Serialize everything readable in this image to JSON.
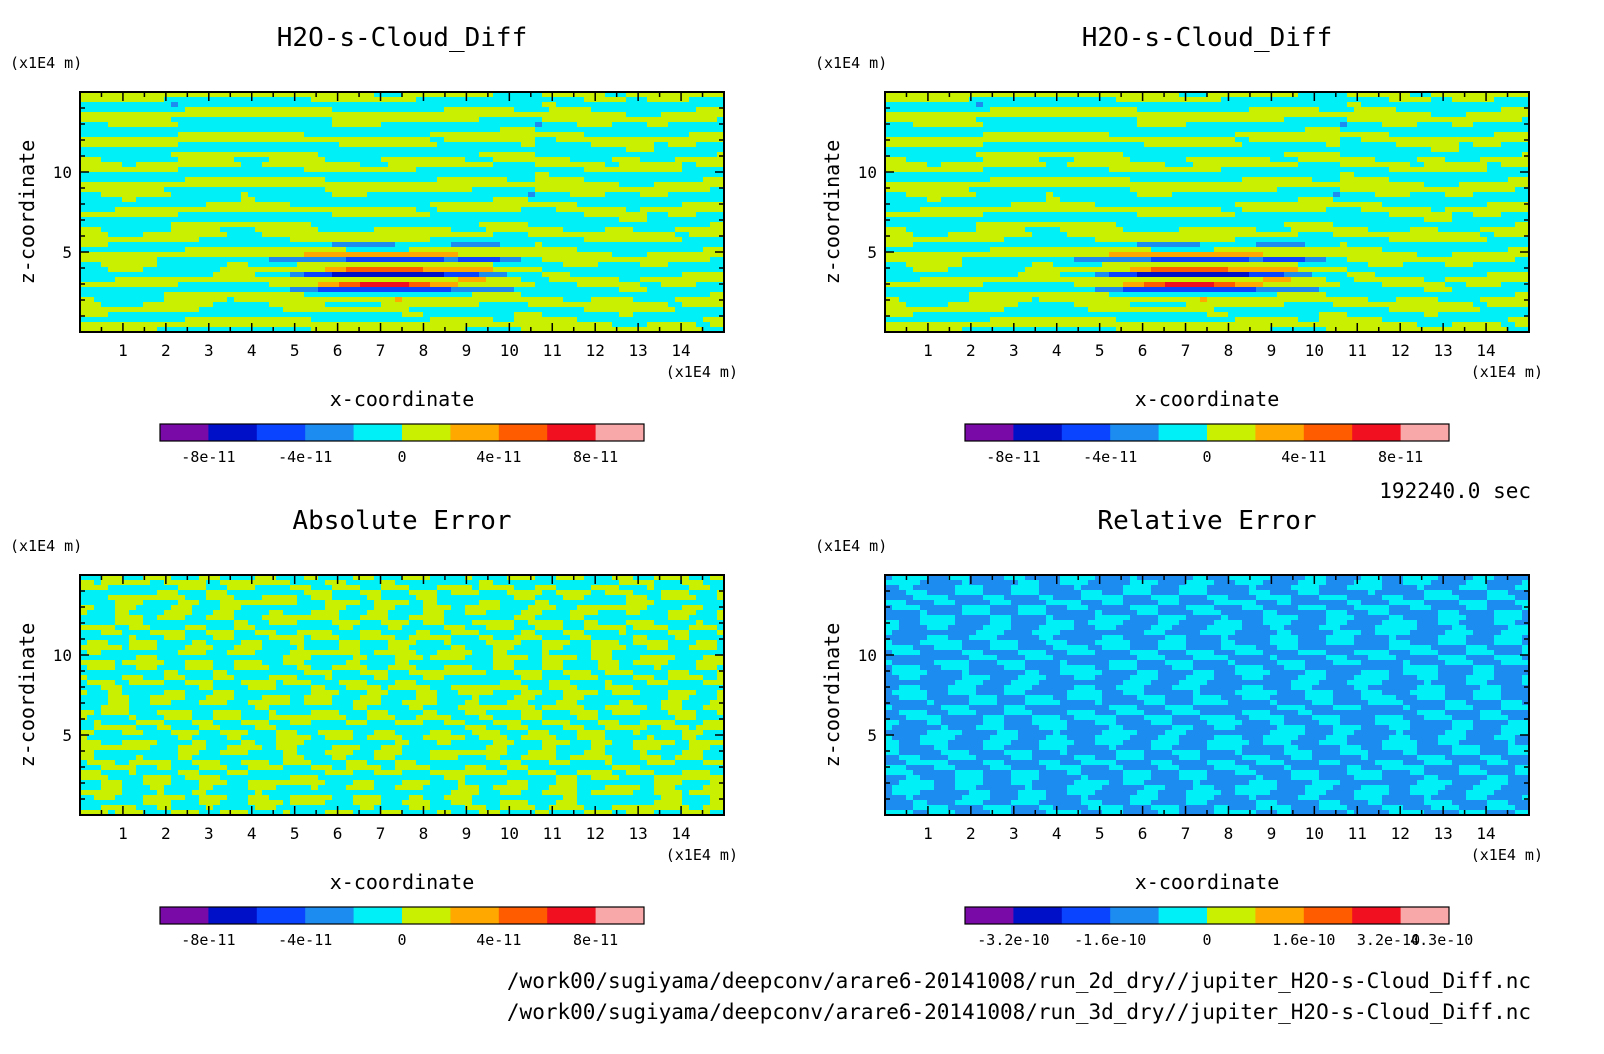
{
  "chart_data": [
    {
      "type": "heatmap",
      "title": "H2O-s-Cloud_Diff",
      "xlabel": "x-coordinate",
      "ylabel": "z-coordinate",
      "xunit": "(x1E4 m)",
      "yunit": "(x1E4 m)",
      "xlim": [
        0,
        15
      ],
      "ylim": [
        0,
        15
      ],
      "xticks": [
        "1",
        "2",
        "3",
        "4",
        "5",
        "6",
        "7",
        "8",
        "9",
        "10",
        "11",
        "12",
        "13",
        "14"
      ],
      "yticks": [
        "5",
        "10"
      ],
      "colorbar": {
        "colors": [
          "#7a0aa8",
          "#0010c8",
          "#0a44ff",
          "#1c8cf0",
          "#00f0f8",
          "#c8f000",
          "#ffa800",
          "#ff5c00",
          "#f01020",
          "#f8a8a8"
        ],
        "tick_labels": [
          "-8e-11",
          "-4e-11",
          "0",
          "4e-11",
          "8e-11"
        ]
      }
    },
    {
      "type": "heatmap",
      "title": "H2O-s-Cloud_Diff",
      "xlabel": "x-coordinate",
      "ylabel": "z-coordinate",
      "xunit": "(x1E4 m)",
      "yunit": "(x1E4 m)",
      "xlim": [
        0,
        15
      ],
      "ylim": [
        0,
        15
      ],
      "xticks": [
        "1",
        "2",
        "3",
        "4",
        "5",
        "6",
        "7",
        "8",
        "9",
        "10",
        "11",
        "12",
        "13",
        "14"
      ],
      "yticks": [
        "5",
        "10"
      ],
      "colorbar": {
        "colors": [
          "#7a0aa8",
          "#0010c8",
          "#0a44ff",
          "#1c8cf0",
          "#00f0f8",
          "#c8f000",
          "#ffa800",
          "#ff5c00",
          "#f01020",
          "#f8a8a8"
        ],
        "tick_labels": [
          "-8e-11",
          "-4e-11",
          "0",
          "4e-11",
          "8e-11"
        ]
      }
    },
    {
      "type": "heatmap",
      "title": "Absolute Error",
      "xlabel": "x-coordinate",
      "ylabel": "z-coordinate",
      "xunit": "(x1E4 m)",
      "yunit": "(x1E4 m)",
      "xlim": [
        0,
        15
      ],
      "ylim": [
        0,
        15
      ],
      "xticks": [
        "1",
        "2",
        "3",
        "4",
        "5",
        "6",
        "7",
        "8",
        "9",
        "10",
        "11",
        "12",
        "13",
        "14"
      ],
      "yticks": [
        "5",
        "10"
      ],
      "colorbar": {
        "colors": [
          "#7a0aa8",
          "#0010c8",
          "#0a44ff",
          "#1c8cf0",
          "#00f0f8",
          "#c8f000",
          "#ffa800",
          "#ff5c00",
          "#f01020",
          "#f8a8a8"
        ],
        "tick_labels": [
          "-8e-11",
          "-4e-11",
          "0",
          "4e-11",
          "8e-11"
        ]
      }
    },
    {
      "type": "heatmap",
      "title": "Relative Error",
      "xlabel": "x-coordinate",
      "ylabel": "z-coordinate",
      "xunit": "(x1E4 m)",
      "yunit": "(x1E4 m)",
      "xlim": [
        0,
        15
      ],
      "ylim": [
        0,
        15
      ],
      "xticks": [
        "1",
        "2",
        "3",
        "4",
        "5",
        "6",
        "7",
        "8",
        "9",
        "10",
        "11",
        "12",
        "13",
        "14"
      ],
      "yticks": [
        "5",
        "10"
      ],
      "colorbar": {
        "colors": [
          "#7a0aa8",
          "#0010c8",
          "#0a44ff",
          "#1c8cf0",
          "#00f0f8",
          "#c8f000",
          "#ffa800",
          "#ff5c00",
          "#f01020",
          "#f8a8a8"
        ],
        "tick_labels": [
          "-3.2e-10",
          "-1.6e-10",
          "0",
          "1.6e-10",
          "3.2e-10",
          "4.3e-10"
        ]
      }
    }
  ],
  "time_label": "192240.0 sec",
  "footer": [
    "/work00/sugiyama/deepconv/arare6-20141008/run_2d_dry//jupiter_H2O-s-Cloud_Diff.nc",
    "/work00/sugiyama/deepconv/arare6-20141008/run_3d_dry//jupiter_H2O-s-Cloud_Diff.nc"
  ]
}
